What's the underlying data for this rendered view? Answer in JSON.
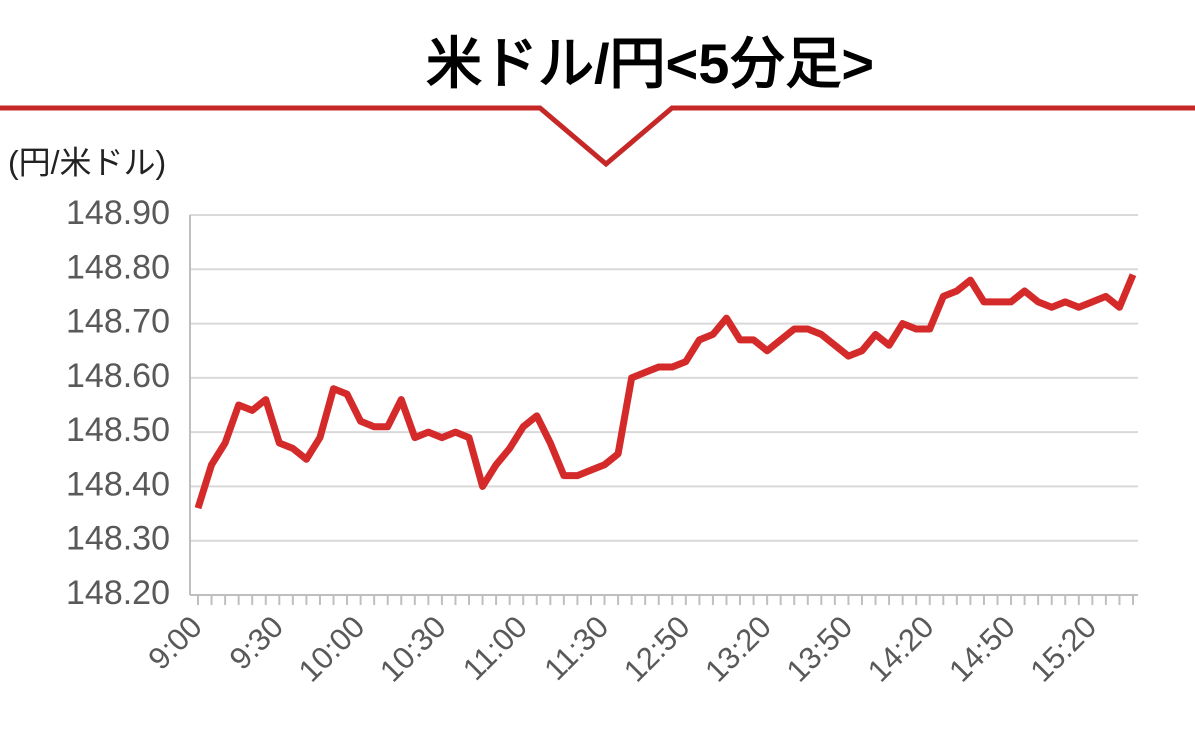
{
  "chart_data": {
    "type": "line",
    "title": "米ドル/円<5分足>",
    "y_label": "(円/米ドル)",
    "categories": [
      "9:00",
      null,
      null,
      null,
      null,
      null,
      "9:30",
      null,
      null,
      null,
      null,
      null,
      "10:00",
      null,
      null,
      null,
      null,
      null,
      "10:30",
      null,
      null,
      null,
      null,
      null,
      "11:00",
      null,
      null,
      null,
      null,
      null,
      "11:30",
      null,
      null,
      null,
      null,
      null,
      "12:50",
      null,
      null,
      null,
      null,
      null,
      "13:20",
      null,
      null,
      null,
      null,
      null,
      "13:50",
      null,
      null,
      null,
      null,
      null,
      "14:20",
      null,
      null,
      null,
      null,
      null,
      "14:50",
      null,
      null,
      null,
      null,
      null,
      "15:20",
      null,
      null,
      null
    ],
    "series": [
      {
        "name": "米ドル/円",
        "color": "#d42a2a",
        "values": [
          148.36,
          148.44,
          148.48,
          148.55,
          148.54,
          148.56,
          148.48,
          148.47,
          148.45,
          148.49,
          148.58,
          148.57,
          148.52,
          148.51,
          148.51,
          148.56,
          148.49,
          148.5,
          148.49,
          148.5,
          148.49,
          148.4,
          148.44,
          148.47,
          148.51,
          148.53,
          148.48,
          148.42,
          148.42,
          148.43,
          148.44,
          148.46,
          148.6,
          148.61,
          148.62,
          148.62,
          148.63,
          148.67,
          148.68,
          148.71,
          148.67,
          148.67,
          148.65,
          148.67,
          148.69,
          148.69,
          148.68,
          148.66,
          148.64,
          148.65,
          148.68,
          148.66,
          148.7,
          148.69,
          148.69,
          148.75,
          148.76,
          148.78,
          148.74,
          148.74,
          148.74,
          148.76,
          148.74,
          148.73,
          148.74,
          148.73,
          148.74,
          148.75,
          148.73,
          148.79
        ]
      }
    ],
    "ylim": [
      148.2,
      148.9
    ],
    "yticks": [
      {
        "value": 148.2,
        "label": "148.20"
      },
      {
        "value": 148.3,
        "label": "148.30"
      },
      {
        "value": 148.4,
        "label": "148.40"
      },
      {
        "value": 148.5,
        "label": "148.50"
      },
      {
        "value": 148.6,
        "label": "148.60"
      },
      {
        "value": 148.7,
        "label": "148.70"
      },
      {
        "value": 148.8,
        "label": "148.80"
      },
      {
        "value": 148.9,
        "label": "148.90"
      }
    ],
    "grid": true
  }
}
